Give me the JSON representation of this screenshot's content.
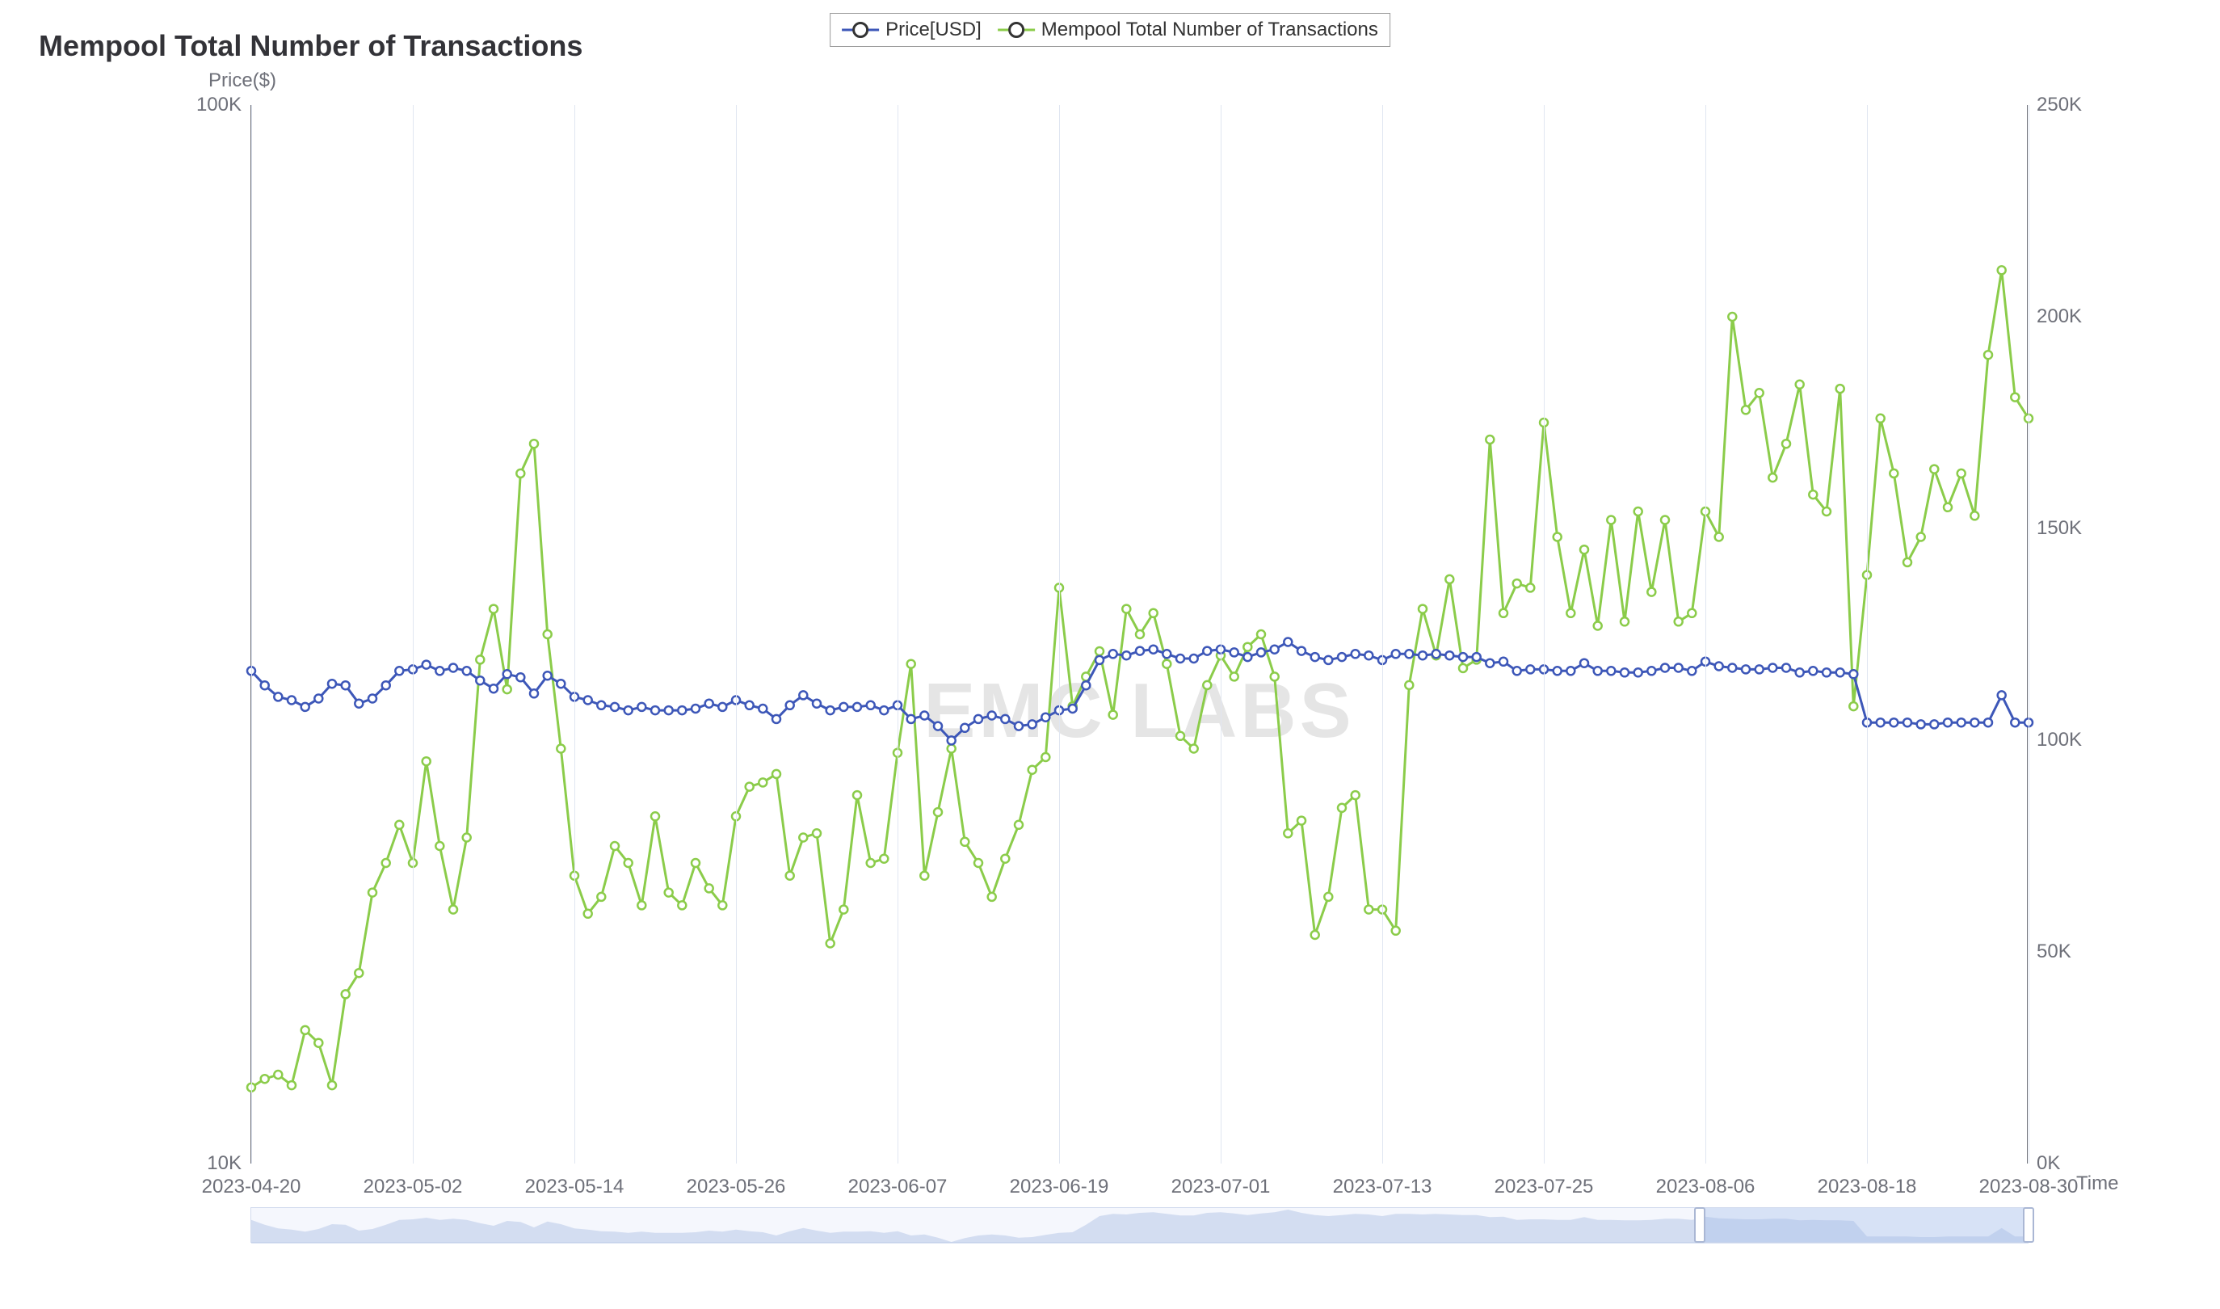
{
  "chart": {
    "type": "line",
    "title": "Mempool Total Number of Transactions",
    "watermark_text": "EMC LABS",
    "ylabel_left": "Price($)",
    "xlabel_right": "Time",
    "legend_items": [
      {
        "label": "Price[USD]",
        "color": "#3d57b8",
        "marker": "circle-open"
      },
      {
        "label": "Mempool Total Number of Transactions",
        "color": "#8bcc4a",
        "marker": "circle-open"
      }
    ],
    "x_axis": {
      "ticks": [
        "2023-04-20",
        "2023-05-02",
        "2023-05-14",
        "2023-05-26",
        "2023-06-07",
        "2023-06-19",
        "2023-07-01",
        "2023-07-13",
        "2023-07-25",
        "2023-08-06",
        "2023-08-18",
        "2023-08-30"
      ],
      "n_points": 133
    },
    "y_left": {
      "scale": "log",
      "ticks": [
        "10K",
        "100K"
      ],
      "min": 10000,
      "max": 100000
    },
    "y_right": {
      "scale": "linear",
      "ticks": [
        "0K",
        "50K",
        "100K",
        "150K",
        "200K",
        "250K"
      ],
      "min": 0,
      "max": 250000
    },
    "grid_color": "#e0e6f1",
    "background_color": "#ffffff",
    "line_width": 3,
    "marker_radius": 5,
    "marker_fill": "#ffffff",
    "marker_stroke_width": 2.5,
    "series": {
      "price_usd": {
        "color": "#3d57b8",
        "axis": "left",
        "values": [
          29200,
          28300,
          27600,
          27400,
          27000,
          27500,
          28400,
          28300,
          27200,
          27500,
          28300,
          29200,
          29300,
          29600,
          29200,
          29400,
          29200,
          28600,
          28100,
          29000,
          28800,
          27800,
          28900,
          28400,
          27600,
          27400,
          27100,
          27000,
          26800,
          27000,
          26800,
          26800,
          26800,
          26900,
          27200,
          27000,
          27400,
          27100,
          26900,
          26300,
          27100,
          27700,
          27200,
          26800,
          27000,
          27000,
          27100,
          26800,
          27100,
          26300,
          26500,
          25900,
          25100,
          25800,
          26300,
          26500,
          26300,
          25900,
          26000,
          26400,
          26800,
          26900,
          28300,
          29900,
          30300,
          30200,
          30500,
          30600,
          30300,
          30000,
          30000,
          30500,
          30600,
          30400,
          30100,
          30400,
          30600,
          31100,
          30500,
          30100,
          29900,
          30100,
          30300,
          30200,
          29900,
          30300,
          30300,
          30200,
          30300,
          30200,
          30100,
          30100,
          29700,
          29800,
          29200,
          29300,
          29300,
          29200,
          29200,
          29700,
          29200,
          29200,
          29100,
          29100,
          29200,
          29400,
          29400,
          29200,
          29800,
          29500,
          29400,
          29300,
          29300,
          29400,
          29400,
          29100,
          29200,
          29100,
          29100,
          29000,
          26100,
          26100,
          26100,
          26100,
          26000,
          26000,
          26100,
          26100,
          26100,
          26100,
          27700,
          26100,
          26100
        ]
      },
      "mempool_tx": {
        "color": "#8bcc4a",
        "axis": "right",
        "values": [
          18000,
          20000,
          21000,
          18500,
          31500,
          28500,
          18500,
          40000,
          45000,
          64000,
          71000,
          80000,
          71000,
          95000,
          75000,
          60000,
          77000,
          119000,
          131000,
          112000,
          163000,
          170000,
          125000,
          98000,
          68000,
          59000,
          63000,
          75000,
          71000,
          61000,
          82000,
          64000,
          61000,
          71000,
          65000,
          61000,
          82000,
          89000,
          90000,
          92000,
          68000,
          77000,
          78000,
          52000,
          60000,
          87000,
          71000,
          72000,
          97000,
          118000,
          68000,
          83000,
          98000,
          76000,
          71000,
          63000,
          72000,
          80000,
          93000,
          96000,
          136000,
          108000,
          115000,
          121000,
          106000,
          131000,
          125000,
          130000,
          118000,
          101000,
          98000,
          113000,
          120000,
          115000,
          122000,
          125000,
          115000,
          78000,
          81000,
          54000,
          63000,
          84000,
          87000,
          60000,
          60000,
          55000,
          113000,
          131000,
          120000,
          138000,
          117000,
          119000,
          171000,
          130000,
          137000,
          136000,
          175000,
          148000,
          130000,
          145000,
          127000,
          152000,
          128000,
          154000,
          135000,
          152000,
          128000,
          130000,
          154000,
          148000,
          200000,
          178000,
          182000,
          162000,
          170000,
          184000,
          158000,
          154000,
          183000,
          108000,
          139000,
          176000,
          163000,
          142000,
          148000,
          164000,
          155000,
          163000,
          153000,
          191000,
          211000,
          181000,
          176000
        ]
      }
    },
    "slider": {
      "range_start_pct": 81.5,
      "range_end_pct": 100.0,
      "track_fill_color": "rgba(161,185,233,0.35)",
      "track_border_color": "#d2dbee",
      "handle_border_color": "#aab7d4"
    }
  }
}
